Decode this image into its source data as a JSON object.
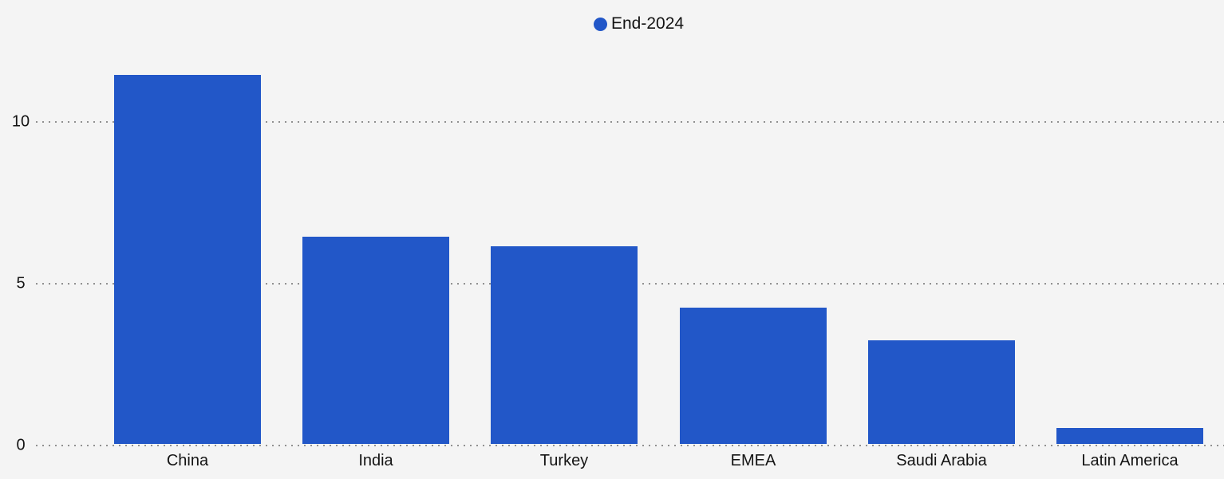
{
  "legend": {
    "items": [
      {
        "label": "End-2024",
        "marker": "circle",
        "color": "#2257c8"
      }
    ]
  },
  "chart_data": {
    "type": "bar",
    "title": "",
    "xlabel": "",
    "ylabel": "",
    "categories": [
      "China",
      "India",
      "Turkey",
      "EMEA",
      "Saudi Arabia",
      "Latin America"
    ],
    "series": [
      {
        "name": "End-2024",
        "values": [
          11.4,
          6.4,
          6.1,
          4.2,
          3.2,
          0.5
        ]
      }
    ],
    "yticks": [
      0,
      5,
      10
    ],
    "ylim": [
      0,
      12.2
    ],
    "grid": "horizontal-dotted",
    "legend_position": "top-center",
    "bar_color": "#2257c8"
  },
  "colors": {
    "background": "#f4f4f4",
    "bar": "#2257c8",
    "grid": "#6f6f6f",
    "text": "#141414"
  }
}
